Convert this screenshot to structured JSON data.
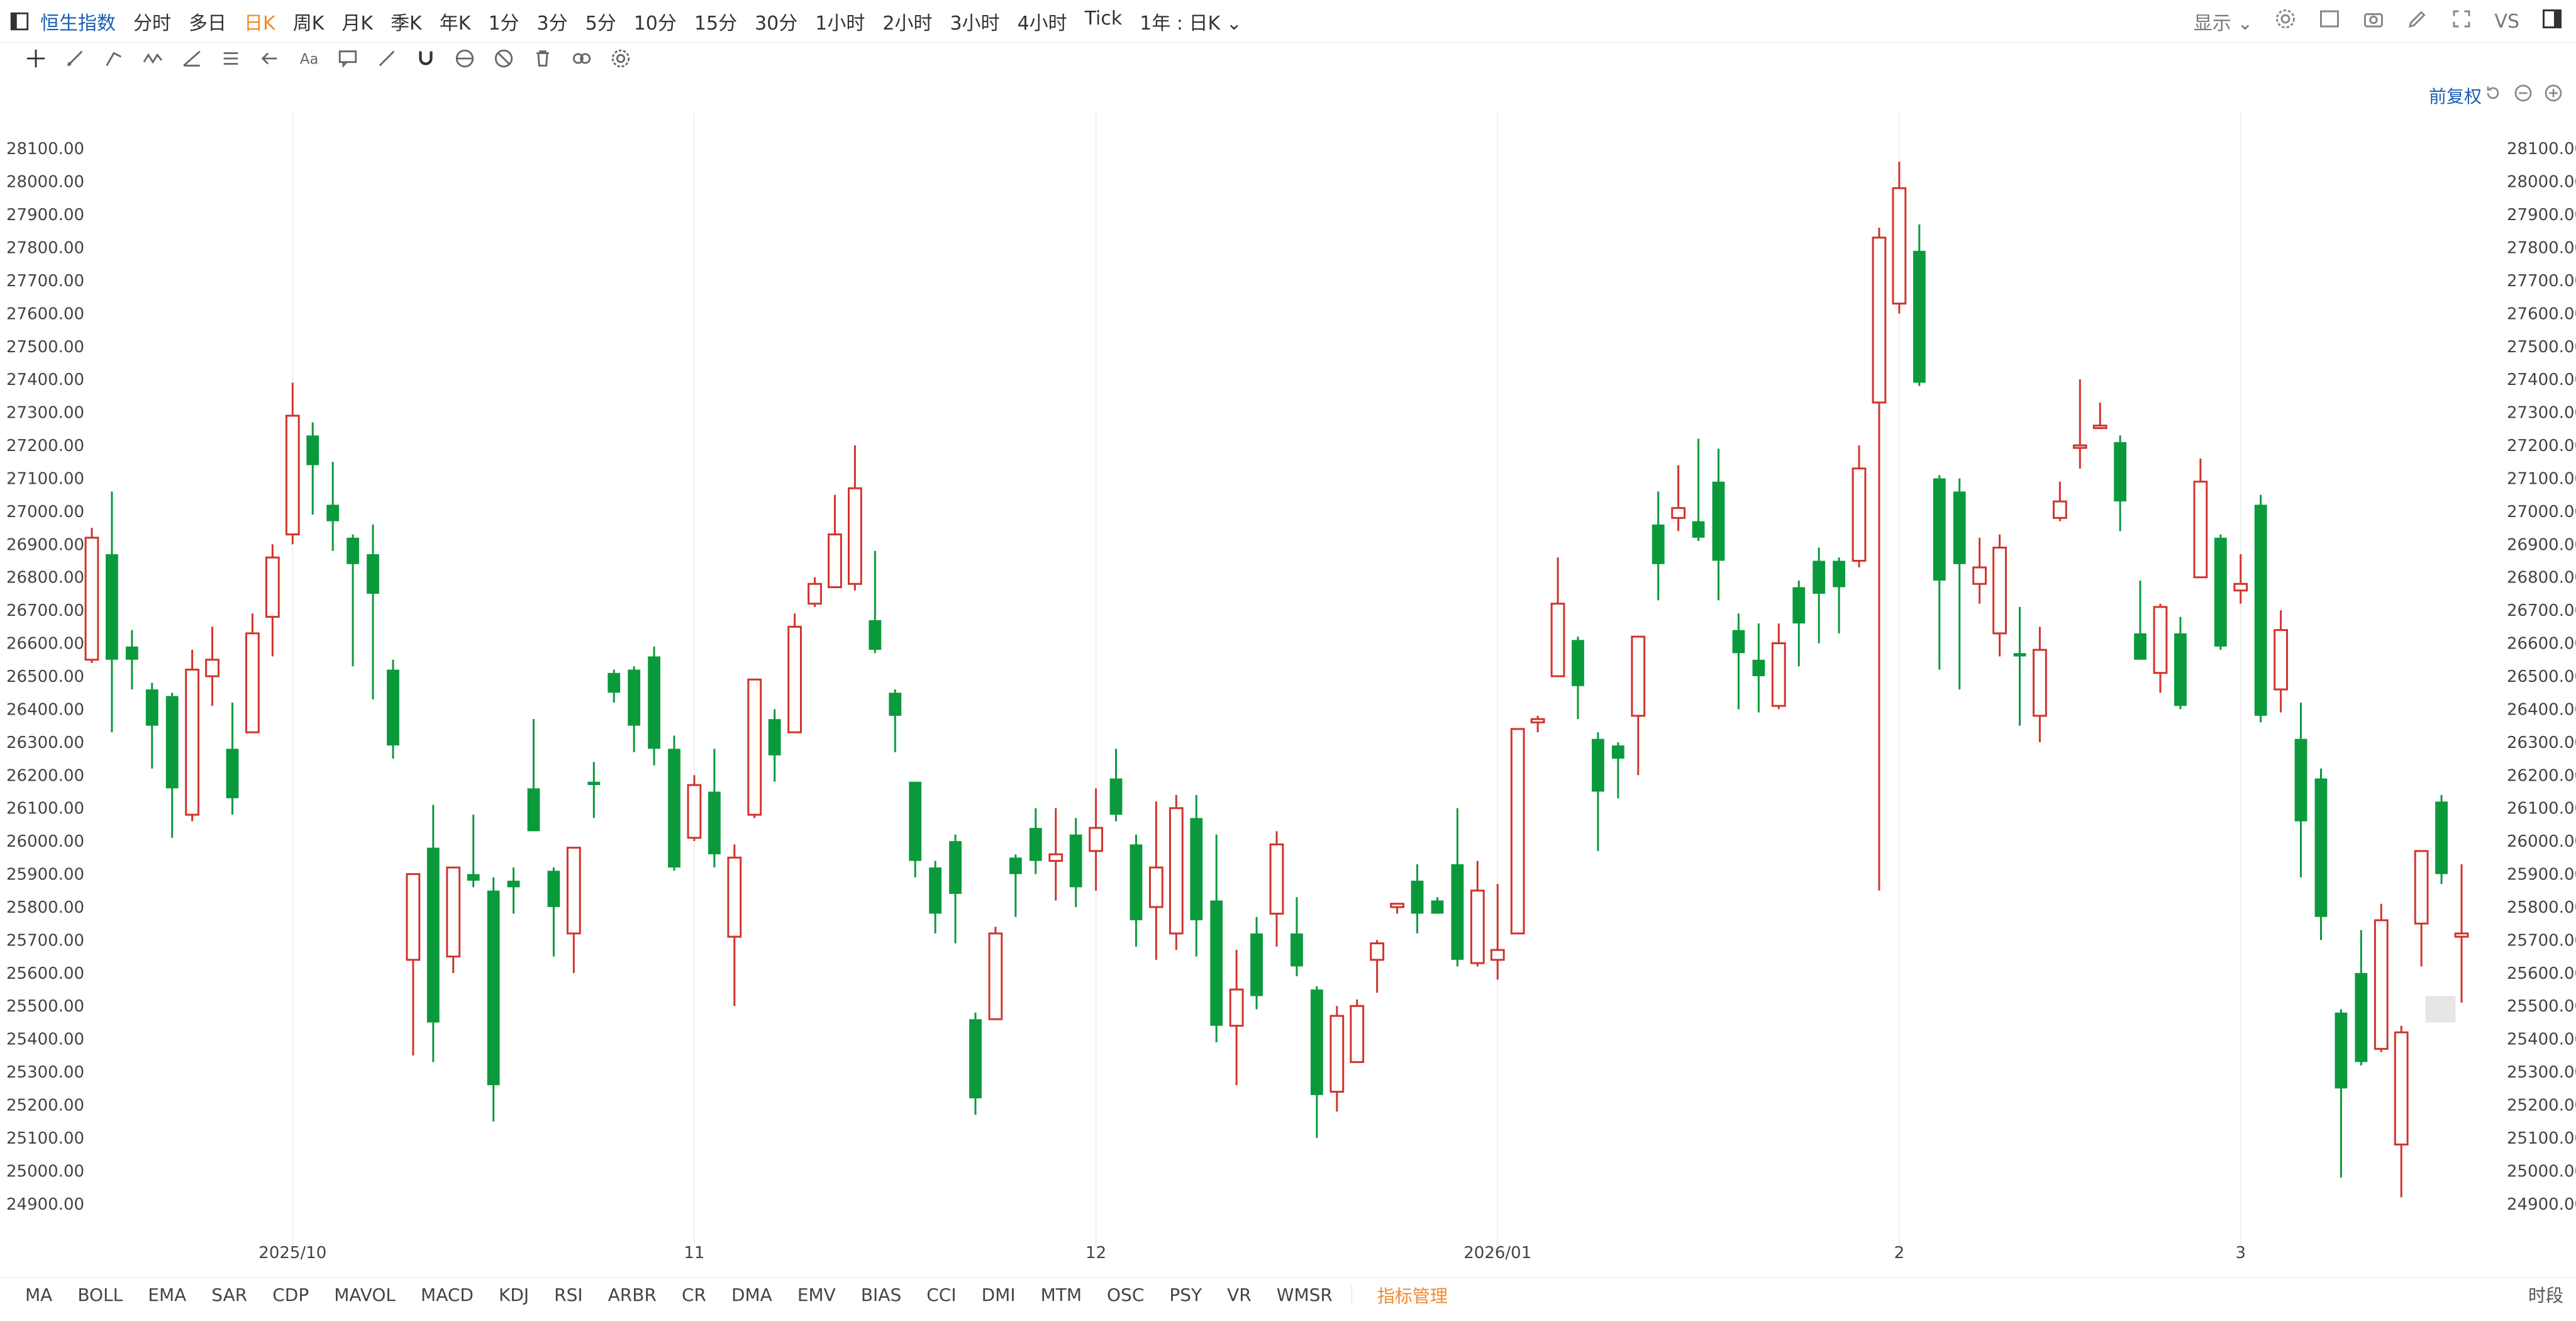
{
  "toolbar": {
    "title": "恒生指数",
    "periods": [
      "分时",
      "多日",
      "日K",
      "周K",
      "月K",
      "季K",
      "年K",
      "1分",
      "3分",
      "5分",
      "10分",
      "15分",
      "30分",
      "1小时",
      "2小时",
      "3小时",
      "4小时",
      "Tick"
    ],
    "active_period": "日K",
    "range_select": "1年 : 日K",
    "display_label": "显示",
    "vs_label": "VS"
  },
  "chart_toolbar": {
    "icons": [
      "crosshair-icon",
      "pen-icon",
      "line-icon",
      "wave-icon",
      "fib-icon",
      "pattern-icon",
      "arrow-icon",
      "text-icon",
      "comment-icon",
      "ruler-icon",
      "magnet-icon",
      "lock-icon",
      "hide-icon",
      "trash-icon",
      "link-icon",
      "settings-icon"
    ],
    "text_tool_label": "Aa"
  },
  "adjust_label": "前复权",
  "chart_data": {
    "type": "candlestick",
    "title": "",
    "up_color": "#d0342c",
    "down_color": "#0a9a3c",
    "ylim": [
      24850,
      28150
    ],
    "y_ticks": [
      "28100.00",
      "28000.00",
      "27900.00",
      "27800.00",
      "27700.00",
      "27600.00",
      "27500.00",
      "27400.00",
      "27300.00",
      "27200.00",
      "27100.00",
      "27000.00",
      "26900.00",
      "26800.00",
      "26700.00",
      "26600.00",
      "26500.00",
      "26400.00",
      "26300.00",
      "26200.00",
      "26100.00",
      "26000.00",
      "25900.00",
      "25800.00",
      "25700.00",
      "25600.00",
      "25500.00",
      "25400.00",
      "25300.00",
      "25200.00",
      "25100.00",
      "25000.00",
      "24900.00"
    ],
    "x_labels": [
      {
        "i": 10,
        "label": "2025/10"
      },
      {
        "i": 30,
        "label": "11"
      },
      {
        "i": 50,
        "label": "12"
      },
      {
        "i": 70,
        "label": "2026/01"
      },
      {
        "i": 90,
        "label": "2"
      },
      {
        "i": 107,
        "label": "3"
      }
    ],
    "candles": [
      [
        26550,
        26920,
        26540,
        26950
      ],
      [
        26870,
        26550,
        26330,
        27060
      ],
      [
        26590,
        26550,
        26460,
        26640
      ],
      [
        26460,
        26350,
        26220,
        26480
      ],
      [
        26440,
        26160,
        26010,
        26450
      ],
      [
        26080,
        26520,
        26060,
        26580
      ],
      [
        26500,
        26550,
        26410,
        26650
      ],
      [
        26280,
        26130,
        26080,
        26420
      ],
      [
        26330,
        26630,
        26330,
        26690
      ],
      [
        26680,
        26860,
        26560,
        26900
      ],
      [
        26930,
        27290,
        26900,
        27390
      ],
      [
        27230,
        27140,
        26990,
        27270
      ],
      [
        27020,
        26970,
        26880,
        27150
      ],
      [
        26920,
        26840,
        26530,
        26930
      ],
      [
        26870,
        26750,
        26430,
        26960
      ],
      [
        26520,
        26290,
        26250,
        26550
      ],
      [
        25640,
        25900,
        25350,
        25900
      ],
      [
        25980,
        25450,
        25330,
        26110
      ],
      [
        25650,
        25920,
        25600,
        25920
      ],
      [
        25900,
        25880,
        25860,
        26080
      ],
      [
        25850,
        25260,
        25150,
        25890
      ],
      [
        25880,
        25860,
        25780,
        25920
      ],
      [
        26160,
        26030,
        26030,
        26370
      ],
      [
        25910,
        25800,
        25650,
        25920
      ],
      [
        25720,
        25980,
        25600,
        25980
      ],
      [
        26180,
        26170,
        26070,
        26240
      ],
      [
        26510,
        26450,
        26420,
        26520
      ],
      [
        26520,
        26350,
        26270,
        26530
      ],
      [
        26560,
        26280,
        26230,
        26590
      ],
      [
        26280,
        25920,
        25910,
        26320
      ],
      [
        26010,
        26170,
        26000,
        26200
      ],
      [
        26150,
        25960,
        25920,
        26280
      ],
      [
        25710,
        25950,
        25500,
        25990
      ],
      [
        26080,
        26490,
        26070,
        26490
      ],
      [
        26370,
        26260,
        26180,
        26400
      ],
      [
        26330,
        26650,
        26330,
        26690
      ],
      [
        26720,
        26780,
        26710,
        26800
      ],
      [
        26770,
        26930,
        26770,
        27050
      ],
      [
        26780,
        27070,
        26760,
        27200
      ],
      [
        26670,
        26580,
        26570,
        26880
      ],
      [
        26450,
        26380,
        26270,
        26460
      ],
      [
        26180,
        25940,
        25890,
        26180
      ],
      [
        25920,
        25780,
        25720,
        25940
      ],
      [
        26000,
        25840,
        25690,
        26020
      ],
      [
        25460,
        25220,
        25170,
        25480
      ],
      [
        25460,
        25720,
        25460,
        25740
      ],
      [
        25950,
        25900,
        25770,
        25960
      ],
      [
        26040,
        25940,
        25900,
        26100
      ],
      [
        25940,
        25960,
        25820,
        26100
      ],
      [
        26020,
        25860,
        25800,
        26070
      ],
      [
        25970,
        26040,
        25850,
        26160
      ],
      [
        26190,
        26080,
        26060,
        26280
      ],
      [
        25990,
        25760,
        25680,
        26020
      ],
      [
        25800,
        25920,
        25640,
        26120
      ],
      [
        25720,
        26100,
        25670,
        26140
      ],
      [
        26070,
        25760,
        25650,
        26140
      ],
      [
        25820,
        25440,
        25390,
        26020
      ],
      [
        25440,
        25550,
        25260,
        25670
      ],
      [
        25720,
        25530,
        25490,
        25770
      ],
      [
        25780,
        25990,
        25680,
        26030
      ],
      [
        25720,
        25620,
        25590,
        25830
      ],
      [
        25550,
        25230,
        25100,
        25560
      ],
      [
        25240,
        25470,
        25180,
        25500
      ],
      [
        25330,
        25500,
        25330,
        25520
      ],
      [
        25640,
        25690,
        25540,
        25700
      ],
      [
        25800,
        25810,
        25780,
        25810
      ],
      [
        25880,
        25780,
        25720,
        25930
      ],
      [
        25820,
        25780,
        25780,
        25830
      ],
      [
        25930,
        25640,
        25620,
        26100
      ],
      [
        25630,
        25850,
        25620,
        25940
      ],
      [
        25640,
        25670,
        25580,
        25870
      ],
      [
        25720,
        26340,
        25720,
        26340
      ],
      [
        26360,
        26370,
        26330,
        26380
      ],
      [
        26500,
        26720,
        26500,
        26860
      ],
      [
        26610,
        26470,
        26370,
        26620
      ],
      [
        26310,
        26150,
        25970,
        26330
      ],
      [
        26290,
        26250,
        26130,
        26300
      ],
      [
        26380,
        26620,
        26200,
        26620
      ],
      [
        26960,
        26840,
        26730,
        27060
      ],
      [
        26980,
        27010,
        26940,
        27140
      ],
      [
        26970,
        26920,
        26910,
        27220
      ],
      [
        27090,
        26850,
        26730,
        27190
      ],
      [
        26640,
        26570,
        26400,
        26690
      ],
      [
        26550,
        26500,
        26390,
        26660
      ],
      [
        26410,
        26600,
        26400,
        26660
      ],
      [
        26770,
        26660,
        26530,
        26790
      ],
      [
        26850,
        26750,
        26600,
        26890
      ],
      [
        26850,
        26770,
        26630,
        26860
      ],
      [
        26850,
        27130,
        26830,
        27200
      ],
      [
        27330,
        27830,
        25850,
        27860
      ],
      [
        27630,
        27980,
        27600,
        28060
      ],
      [
        27790,
        27390,
        27380,
        27870
      ],
      [
        27100,
        26790,
        26520,
        27110
      ],
      [
        27060,
        26840,
        26460,
        27100
      ],
      [
        26780,
        26830,
        26720,
        26920
      ],
      [
        26630,
        26890,
        26560,
        26930
      ],
      [
        26570,
        26560,
        26350,
        26710
      ],
      [
        26380,
        26580,
        26300,
        26650
      ],
      [
        26980,
        27030,
        26970,
        27090
      ],
      [
        27200,
        27200,
        27130,
        27400
      ],
      [
        27260,
        27260,
        27250,
        27330
      ],
      [
        27210,
        27030,
        26940,
        27230
      ],
      [
        26630,
        26550,
        26580,
        26790
      ],
      [
        26510,
        26710,
        26450,
        26720
      ],
      [
        26630,
        26410,
        26400,
        26680
      ],
      [
        26800,
        27090,
        26800,
        27160
      ],
      [
        26920,
        26590,
        26580,
        26930
      ],
      [
        26760,
        26780,
        26720,
        26870
      ],
      [
        27020,
        26380,
        26360,
        27050
      ],
      [
        26460,
        26640,
        26390,
        26700
      ],
      [
        26310,
        26060,
        25890,
        26420
      ],
      [
        26190,
        25770,
        25700,
        26220
      ],
      [
        25480,
        25250,
        24980,
        25490
      ],
      [
        25600,
        25330,
        25320,
        25730
      ],
      [
        25370,
        25760,
        25360,
        25810
      ],
      [
        25080,
        25420,
        24920,
        25440
      ],
      [
        25750,
        25970,
        25620,
        25970
      ],
      [
        26120,
        25900,
        25870,
        26140
      ],
      [
        25710,
        25720,
        25510,
        25930
      ]
    ],
    "last_price_box": true
  },
  "bottom_indicators": [
    "MA",
    "BOLL",
    "EMA",
    "SAR",
    "CDP",
    "MAVOL",
    "MACD",
    "KDJ",
    "RSI",
    "ARBR",
    "CR",
    "DMA",
    "EMV",
    "BIAS",
    "CCI",
    "DMI",
    "MTM",
    "OSC",
    "PSY",
    "VR",
    "WMSR",
    "指标管理"
  ],
  "bottom_right_label": "时段"
}
